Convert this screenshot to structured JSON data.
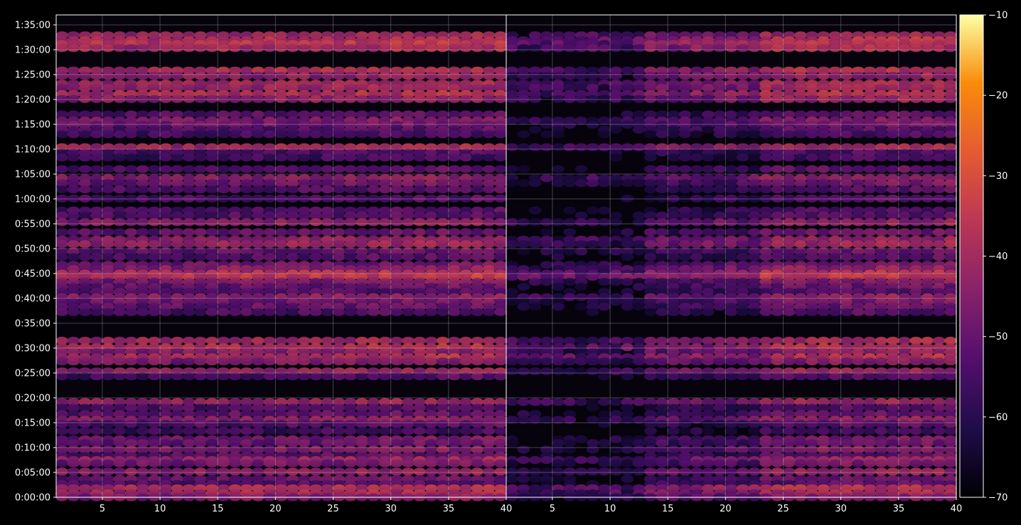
{
  "chart_data": {
    "type": "heatmap",
    "title": "",
    "xlabel": "",
    "ylabel": "",
    "panels": [
      {
        "name": "",
        "xlim": [
          1,
          40
        ],
        "x_ticks": [
          "5",
          "10",
          "15",
          "20",
          "25",
          "30",
          "35"
        ]
      },
      {
        "name": "",
        "xlim": [
          1,
          40
        ],
        "x_ticks": [
          "5",
          "10",
          "15",
          "20",
          "25",
          "30",
          "35",
          "40"
        ]
      }
    ],
    "panel_break_label": "40",
    "ylim_seconds": [
      0,
      5820
    ],
    "y_ticks": [
      {
        "label": "0:00:00",
        "v": 0
      },
      {
        "label": "0:05:00",
        "v": 300
      },
      {
        "label": "0:10:00",
        "v": 600
      },
      {
        "label": "0:15:00",
        "v": 900
      },
      {
        "label": "0:20:00",
        "v": 1200
      },
      {
        "label": "0:25:00",
        "v": 1500
      },
      {
        "label": "0:30:00",
        "v": 1800
      },
      {
        "label": "0:35:00",
        "v": 2100
      },
      {
        "label": "0:40:00",
        "v": 2400
      },
      {
        "label": "0:45:00",
        "v": 2700
      },
      {
        "label": "0:50:00",
        "v": 3000
      },
      {
        "label": "0:55:00",
        "v": 3300
      },
      {
        "label": "1:00:00",
        "v": 3600
      },
      {
        "label": "1:05:00",
        "v": 3900
      },
      {
        "label": "1:10:00",
        "v": 4200
      },
      {
        "label": "1:15:00",
        "v": 4500
      },
      {
        "label": "1:20:00",
        "v": 4800
      },
      {
        "label": "1:25:00",
        "v": 5100
      },
      {
        "label": "1:30:00",
        "v": 5400
      },
      {
        "label": "1:35:00",
        "v": 5700
      }
    ],
    "colorbar": {
      "range": [
        -70,
        -10
      ],
      "ticks": [
        "−10",
        "−20",
        "−30",
        "−40",
        "−50",
        "−60",
        "−70"
      ],
      "colormap": "inferno"
    },
    "bands_seconds_level": [
      [
        5575,
        -43
      ],
      [
        5515,
        -40
      ],
      [
        5470,
        -38
      ],
      [
        5420,
        -42
      ],
      [
        5150,
        -40
      ],
      [
        5085,
        -46
      ],
      [
        4990,
        -42
      ],
      [
        4940,
        -44
      ],
      [
        4865,
        -40
      ],
      [
        4805,
        -45
      ],
      [
        4620,
        -54
      ],
      [
        4545,
        -48
      ],
      [
        4495,
        -50
      ],
      [
        4435,
        -55
      ],
      [
        4380,
        -57
      ],
      [
        4225,
        -42
      ],
      [
        4160,
        -56
      ],
      [
        4100,
        -58
      ],
      [
        3960,
        -54
      ],
      [
        3850,
        -46
      ],
      [
        3790,
        -50
      ],
      [
        3715,
        -55
      ],
      [
        3605,
        -55
      ],
      [
        3460,
        -56
      ],
      [
        3400,
        -55
      ],
      [
        3320,
        -46
      ],
      [
        3200,
        -52
      ],
      [
        3110,
        -46
      ],
      [
        3055,
        -44
      ],
      [
        2965,
        -52
      ],
      [
        2900,
        -55
      ],
      [
        2805,
        -50
      ],
      [
        2755,
        -46
      ],
      [
        2700,
        -40
      ],
      [
        2660,
        -38
      ],
      [
        2600,
        -48
      ],
      [
        2540,
        -52
      ],
      [
        2480,
        -55
      ],
      [
        2415,
        -46
      ],
      [
        2360,
        -50
      ],
      [
        2300,
        -52
      ],
      [
        2235,
        -56
      ],
      [
        1890,
        -42
      ],
      [
        1810,
        -40
      ],
      [
        1755,
        -46
      ],
      [
        1690,
        -40
      ],
      [
        1640,
        -48
      ],
      [
        1520,
        -44
      ],
      [
        1460,
        -56
      ],
      [
        1150,
        -44
      ],
      [
        1080,
        -55
      ],
      [
        1005,
        -52
      ],
      [
        935,
        -46
      ],
      [
        885,
        -55
      ],
      [
        800,
        -58
      ],
      [
        700,
        -50
      ],
      [
        655,
        -52
      ],
      [
        575,
        -48
      ],
      [
        500,
        -54
      ],
      [
        450,
        -44
      ],
      [
        410,
        -50
      ],
      [
        310,
        -46
      ],
      [
        220,
        -52
      ],
      [
        160,
        -55
      ],
      [
        110,
        -40
      ],
      [
        50,
        -42
      ],
      [
        0,
        -48
      ]
    ]
  }
}
